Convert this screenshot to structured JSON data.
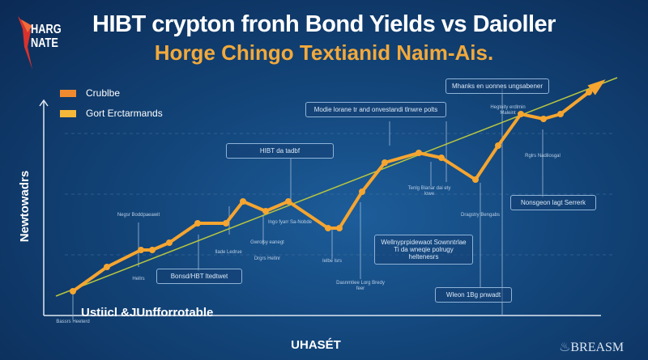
{
  "chart_data": {
    "type": "line",
    "title": "HIBT crypton fronh Bond Yields vs Daioller",
    "subtitle": "Horge Chingo Textianid Naim-Ais.",
    "xlabel": "UHASÉT",
    "ylabel": "Newtowadrs",
    "grid": true,
    "legend_placement": "top-left",
    "legend": [
      {
        "label": "Crublbe",
        "color": "#f08a30"
      },
      {
        "label": "Gort Erctarmands",
        "color": "#f5b83a"
      }
    ],
    "series": [
      {
        "color": "#f5a530",
        "x": [
          5,
          11,
          17,
          19,
          22,
          27,
          32,
          35,
          39,
          43,
          50,
          52,
          56,
          60,
          66,
          70,
          76,
          80,
          84,
          88,
          91,
          96
        ],
        "y": [
          10,
          20,
          27,
          27,
          30,
          38,
          38,
          47,
          43,
          47,
          36,
          36,
          51,
          63,
          67,
          65,
          56,
          70,
          83,
          81,
          83,
          92
        ]
      }
    ],
    "trend": {
      "color": "#b8c640",
      "x": [
        2,
        101
      ],
      "y": [
        8,
        98
      ]
    },
    "xlim": [
      0,
      100
    ],
    "ylim": [
      0,
      100
    ]
  },
  "logo": {
    "line1": "HARG",
    "line2": "NATE"
  },
  "annotation_note": "Ustiicl &JUnfforrotable",
  "brand": "BREASM",
  "annotations": {
    "a1": "Mhanks en uonnes ungsabener",
    "a2": "Modie lorane tr and onvestandi tlnwre polts",
    "a3": "HIBT da tadbf",
    "a4": "Bonsd/HBT ltedtwet",
    "a5": "Wellnyprpidewaot Sownntrlae Ti da wneqie polrugy heltenesrs",
    "a6": "Nonsgeon lagt Serrerk",
    "a7": "Wleon 1Bg pnwadt"
  },
  "small_labels": [
    "Negsr Boddpaeawit",
    "Hellrs",
    "Bassrs Heeterd",
    "Ilade Ledrue",
    "Gwrolsy eanegt",
    "Ingo fyarr Sa-Nobde",
    "Ielbe lsrs",
    "Dasnmtiee Lorg Bredy feer",
    "Tenlg Blanar dai ety lowe",
    "Dragstry Bengabs",
    "Hegtoity erdlmin Maleint",
    "Rglrs Nadilosgal",
    "Drgrs Hetlnr"
  ]
}
